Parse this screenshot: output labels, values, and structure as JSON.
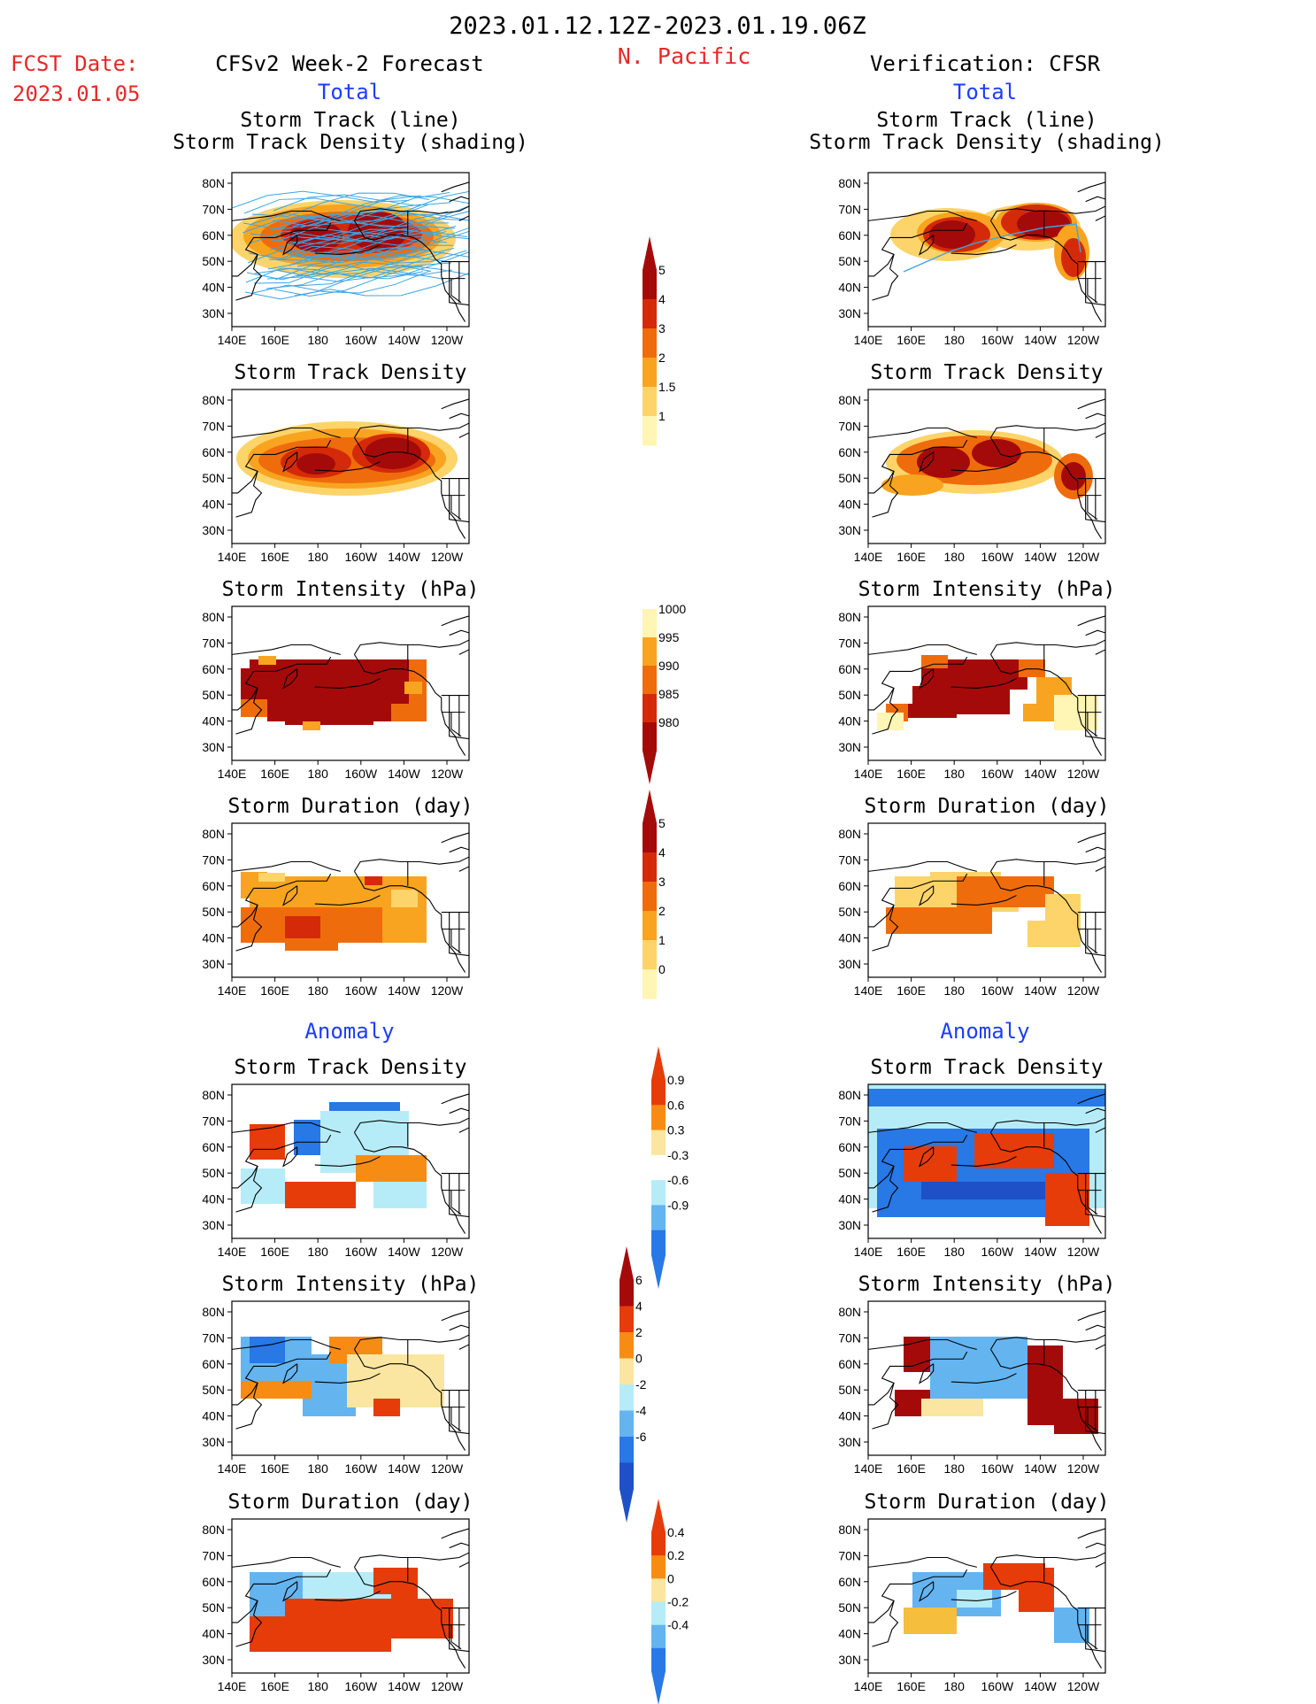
{
  "header": {
    "period": "2023.01.12.12Z-2023.01.19.06Z",
    "region": "N. Pacific",
    "fcst_date_label": "FCST Date:",
    "fcst_date_value": "2023.01.05",
    "left_title": "CFSv2 Week-2 Forecast",
    "right_title": "Verification: CFSR",
    "total_label": "Total",
    "anomaly_label": "Anomaly"
  },
  "panel_titles": {
    "track_line": "Storm Track (line)",
    "track_shading": "Storm Track Density (shading)",
    "density": "Storm Track Density",
    "intensity": "Storm Intensity (hPa)",
    "duration": "Storm Duration (day)"
  },
  "axes": {
    "lat_ticks": [
      "80N",
      "70N",
      "60N",
      "50N",
      "40N",
      "30N"
    ],
    "lon_ticks": [
      "140E",
      "160E",
      "180",
      "160W",
      "140W",
      "120W"
    ]
  },
  "colors": {
    "warm": [
      "#fff5b4",
      "#fcd46a",
      "#f8a420",
      "#ef6c0c",
      "#d42a0a",
      "#a50a0a"
    ],
    "anom_blue": [
      "#b6ecf8",
      "#64b4f0",
      "#2878e6",
      "#1e50c8"
    ],
    "anom_warm": [
      "#fae6a0",
      "#f5be3c",
      "#f78c14",
      "#e63c0a",
      "#a50a0a"
    ],
    "track_line": "#3aa6e6",
    "title_red": "#e62828",
    "title_blue": "#1e3cff"
  },
  "chart_data": [
    {
      "type": "heatmap",
      "title": "Storm Track Density",
      "colorbar_ticks": [
        "1",
        "1.5",
        "2",
        "3",
        "4",
        "5"
      ],
      "forecast_max": 5,
      "verification_max": 5
    },
    {
      "type": "heatmap",
      "title": "Storm Intensity (hPa)",
      "colorbar_ticks": [
        "1000",
        "995",
        "990",
        "985",
        "980"
      ]
    },
    {
      "type": "heatmap",
      "title": "Storm Duration (day)",
      "colorbar_ticks": [
        "5",
        "4",
        "3",
        "2",
        "1",
        "0"
      ]
    },
    {
      "type": "heatmap",
      "title": "Storm Track Density Anomaly",
      "colorbar_ticks": [
        "0.9",
        "0.6",
        "0.3",
        "-0.3",
        "-0.6",
        "-0.9"
      ]
    },
    {
      "type": "heatmap",
      "title": "Storm Intensity Anomaly (hPa)",
      "colorbar_ticks": [
        "6",
        "4",
        "2",
        "0",
        "-2",
        "-4",
        "-6"
      ]
    },
    {
      "type": "heatmap",
      "title": "Storm Duration Anomaly (day)",
      "colorbar_ticks": [
        "0.4",
        "0.2",
        "0",
        "-0.2",
        "-0.4"
      ]
    }
  ]
}
